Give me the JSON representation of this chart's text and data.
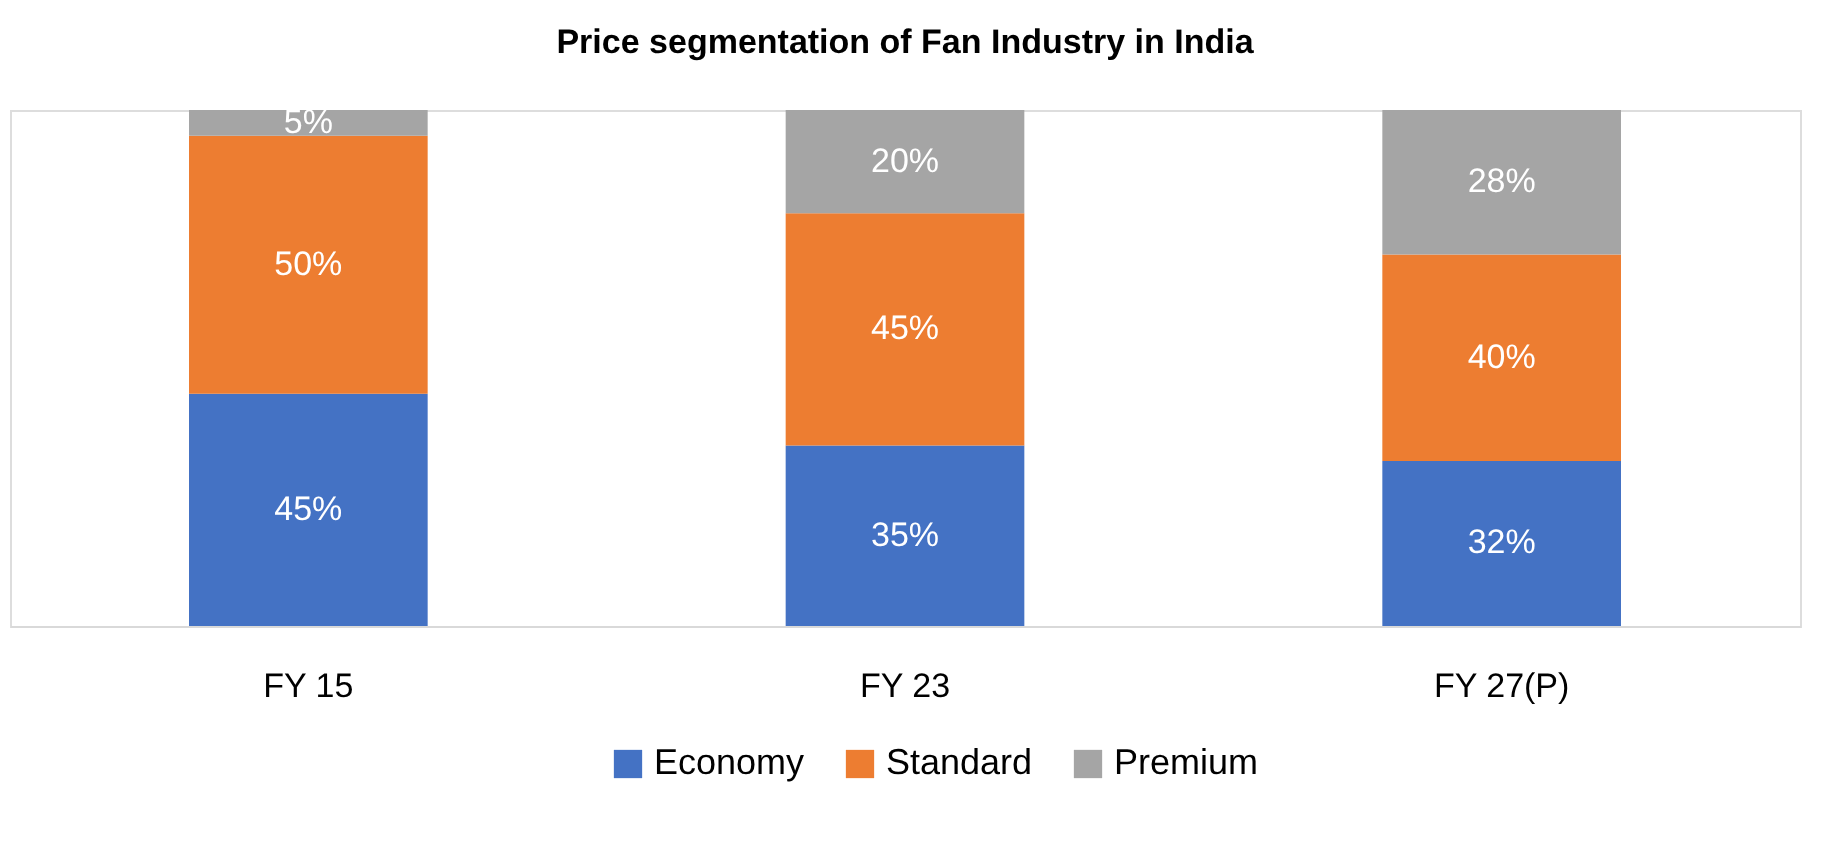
{
  "chart_data": {
    "type": "bar",
    "title": "Price segmentation of Fan Industry in India",
    "categories": [
      "FY 15",
      "FY 23",
      "FY 27(P)"
    ],
    "stacked": true,
    "legend": "bottom",
    "series": [
      {
        "name": "Economy",
        "color": "#4472c4",
        "values": [
          45,
          35,
          32
        ],
        "value_labels": [
          "45%",
          "35%",
          "32%"
        ]
      },
      {
        "name": "Standard",
        "color": "#ed7d31",
        "values": [
          50,
          45,
          40
        ],
        "value_labels": [
          "50%",
          "45%",
          "40%"
        ]
      },
      {
        "name": "Premium",
        "color": "#a5a5a5",
        "values": [
          5,
          20,
          28
        ],
        "value_labels": [
          "5%",
          "20%",
          "28%"
        ]
      }
    ]
  }
}
